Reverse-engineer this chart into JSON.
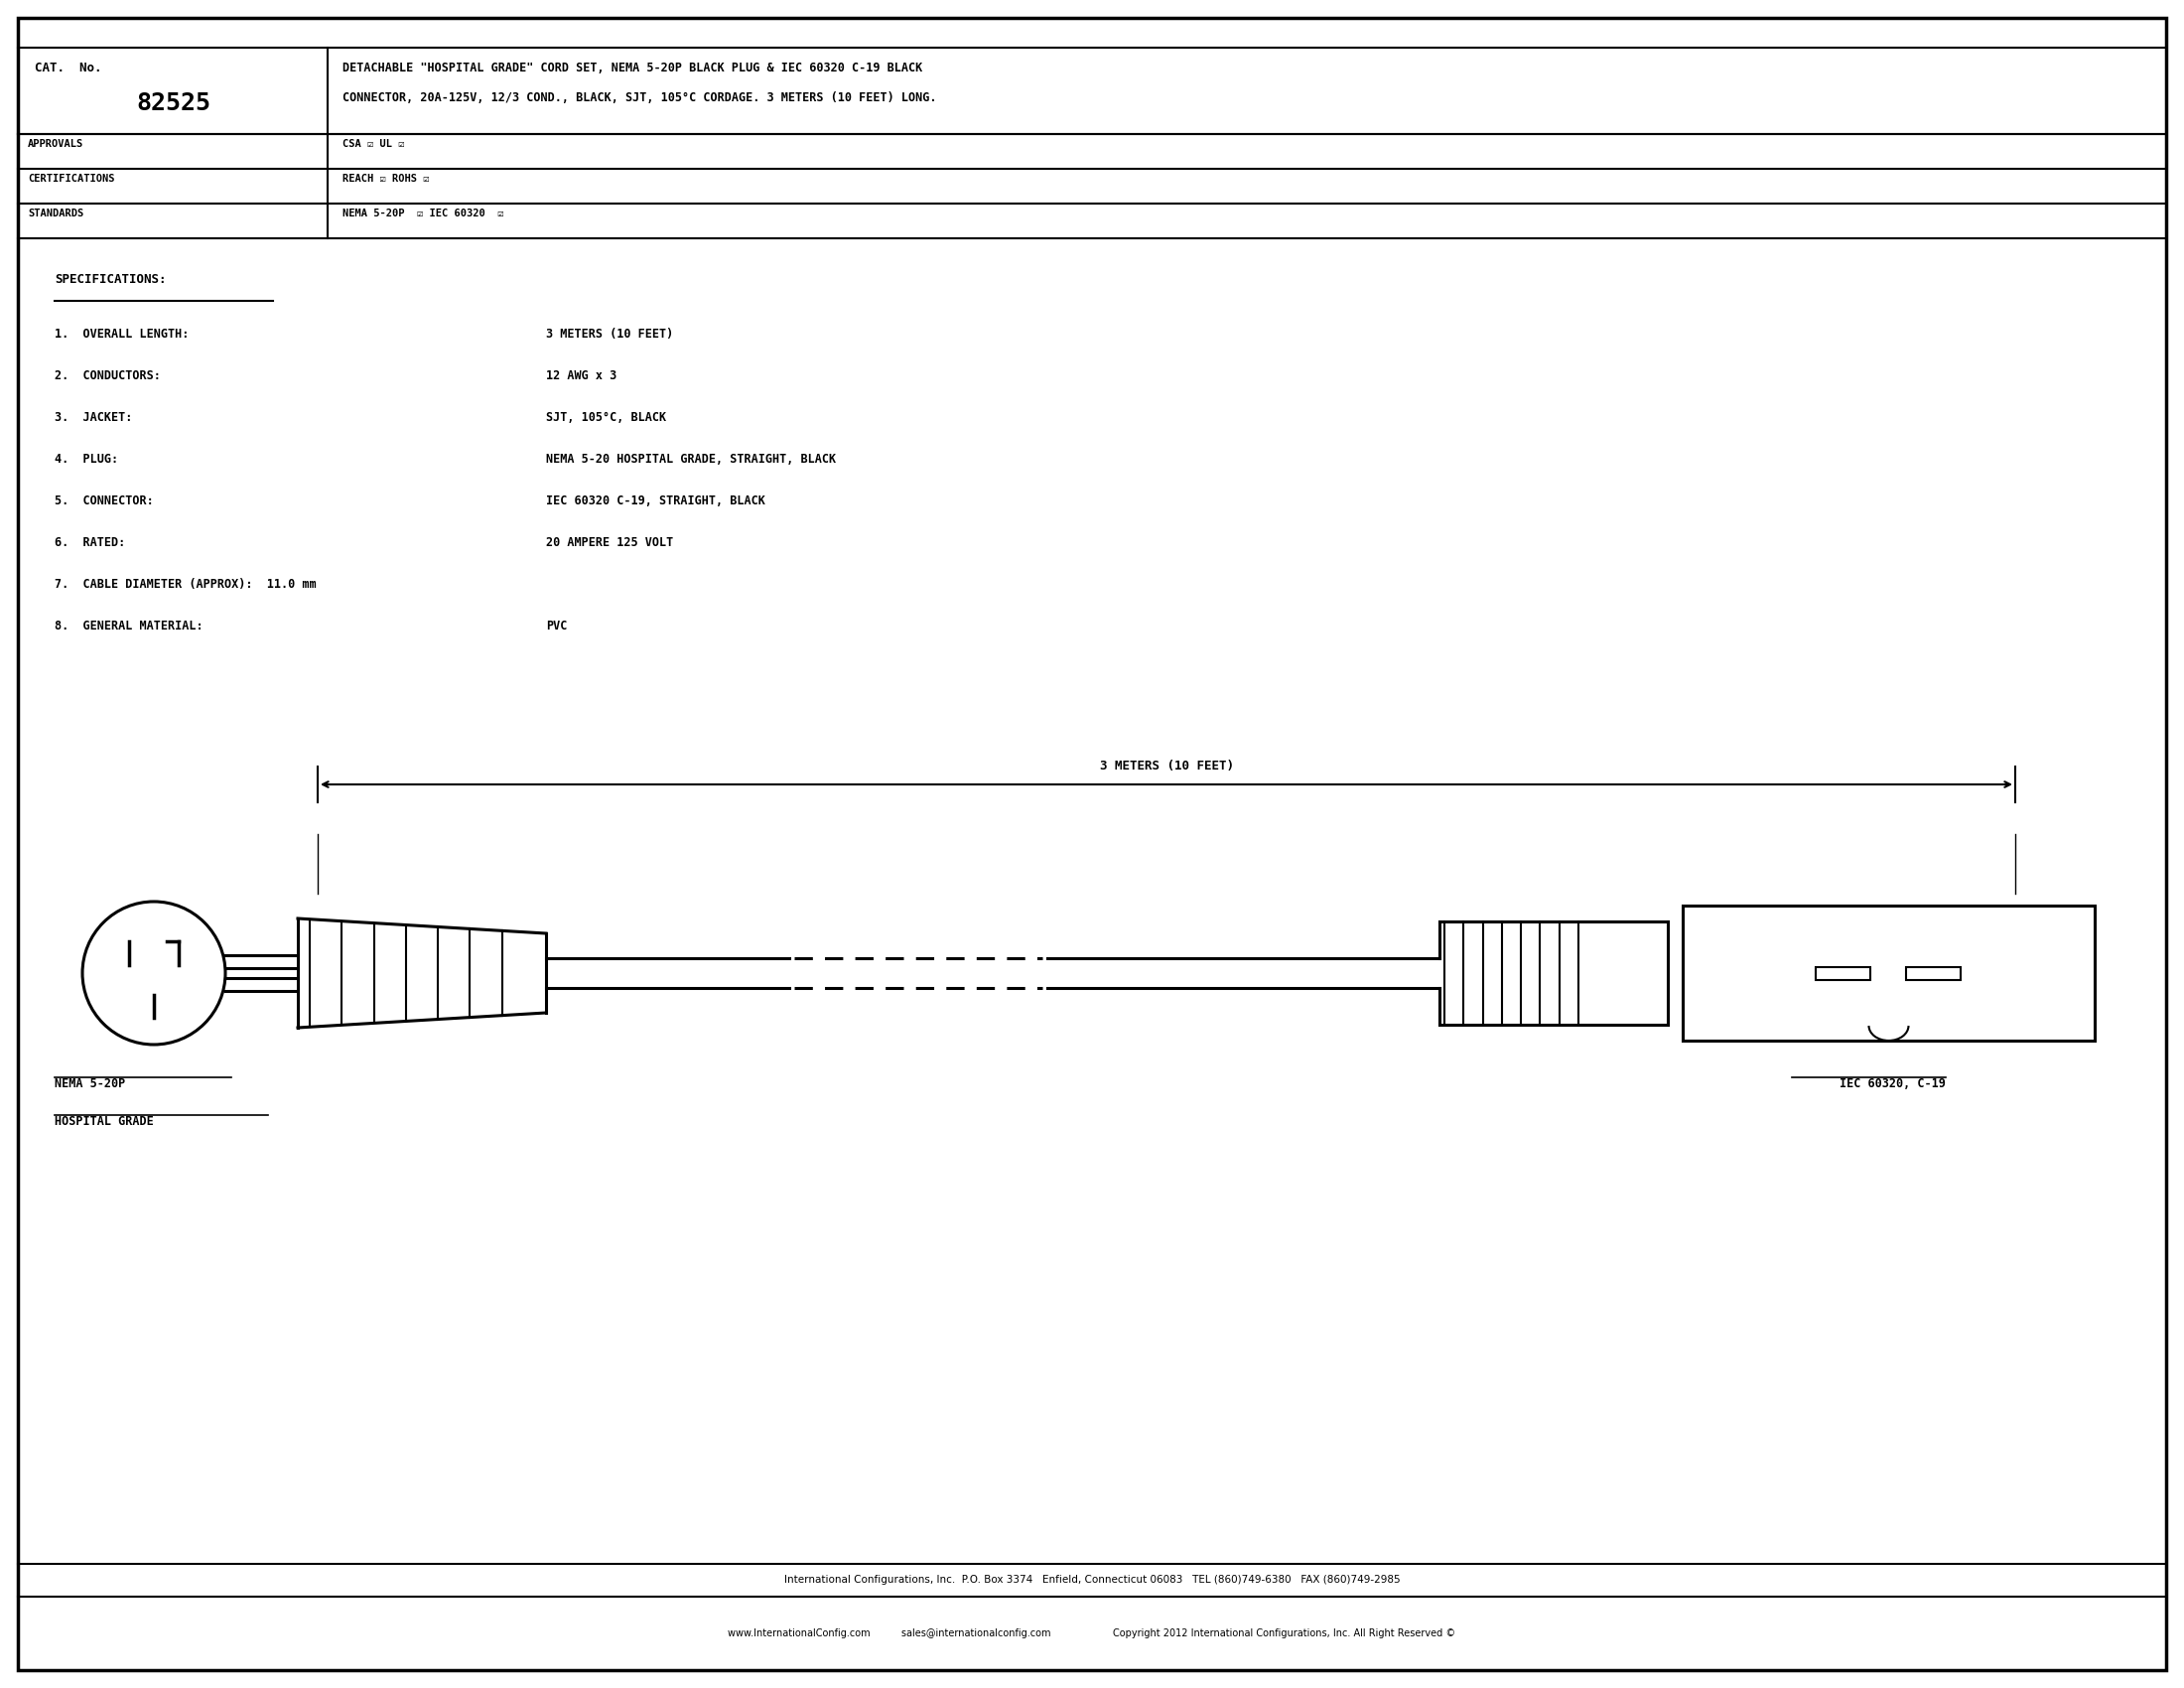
{
  "bg_color": "#ffffff",
  "border_color": "#000000",
  "title_line1": "DETACHABLE \"HOSPITAL GRADE\" CORD SET, NEMA 5-20P BLACK PLUG & IEC 60320 C-19 BLACK",
  "title_line2": "CONNECTOR, 20A-125V, 12/3 COND., BLACK, SJT, 105°C CORDAGE. 3 METERS (10 FEET) LONG.",
  "cat_no_label": "CAT.  No.",
  "cat_no_value": "82525",
  "approvals_label": "APPROVALS",
  "approvals_value": "CSA ☑ UL ☑",
  "certifications_label": "CERTIFICATIONS",
  "certifications_value": "REACH ☑ ROHS ☑",
  "standards_label": "STANDARDS",
  "standards_value": "NEMA 5-20P  ☑ IEC 60320  ☑",
  "specs_title": "SPECIFICATIONS:",
  "spec1": "1.  OVERALL LENGTH:",
  "spec1v": "3 METERS (10 FEET)",
  "spec2": "2.  CONDUCTORS:",
  "spec2v": "12 AWG x 3",
  "spec3": "3.  JACKET:",
  "spec3v": "SJT, 105°C, BLACK",
  "spec4": "4.  PLUG:",
  "spec4v": "NEMA 5-20 HOSPITAL GRADE, STRAIGHT, BLACK",
  "spec5": "5.  CONNECTOR:",
  "spec5v": "IEC 60320 C-19, STRAIGHT, BLACK",
  "spec6": "6.  RATED:",
  "spec6v": "20 AMPERE 125 VOLT",
  "spec7": "7.  CABLE DIAMETER (APPROX):  11.0 mm",
  "spec8": "8.  GENERAL MATERIAL:",
  "spec8v": "PVC",
  "dim_label": "3 METERS (10 FEET)",
  "label_nema_line1": "NEMA 5-20P",
  "label_nema_line2": "HOSPITAL GRADE",
  "label_iec": "IEC 60320, C-19",
  "footer1": "International Configurations, Inc.  P.O. Box 3374   Enfield, Connecticut 06083   TEL (860)749-6380   FAX (860)749-2985",
  "footer2": "www.InternationalConfig.com          sales@internationalconfig.com                    Copyright 2012 International Configurations, Inc. All Right Reserved ©"
}
